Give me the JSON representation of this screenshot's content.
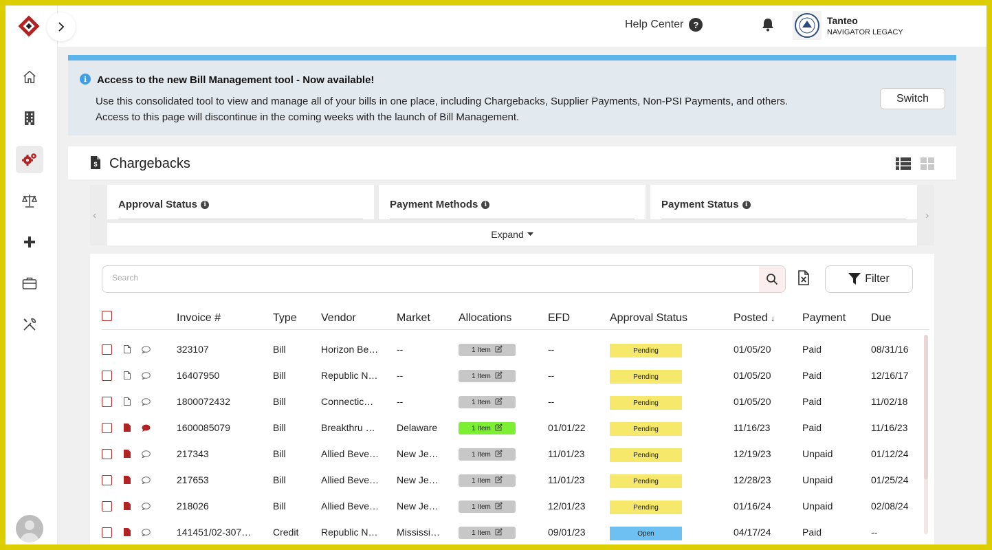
{
  "header": {
    "help_label": "Help Center",
    "org_name": "Tanteo",
    "org_subtitle": "NAVIGATOR LEGACY"
  },
  "sidebar": {
    "items": [
      "home-icon",
      "building-icon",
      "gears-icon",
      "scales-icon",
      "plus-icon",
      "briefcase-icon",
      "tools-icon"
    ],
    "active": "gears-icon"
  },
  "banner": {
    "title": "Access to the new Bill Management tool - Now available!",
    "line1": "Use this consolidated tool to view and manage all of your bills in one place, including Chargebacks, Supplier Payments, Non-PSI Payments, and others.",
    "line2": "Access to this page will discontinue in the coming weeks with the launch of Bill Management.",
    "switch_label": "Switch"
  },
  "page": {
    "title": "Chargebacks"
  },
  "filters": {
    "columns": [
      "Approval Status",
      "Payment Methods",
      "Payment Status"
    ],
    "expand_label": "Expand"
  },
  "toolbar": {
    "search_placeholder": "Search",
    "filter_label": "Filter"
  },
  "table": {
    "columns": [
      "Invoice #",
      "Type",
      "Vendor",
      "Market",
      "Allocations",
      "EFD",
      "Approval Status",
      "Posted",
      "Payment",
      "Due"
    ],
    "sort_indicator": "↓",
    "rows": [
      {
        "invoice": "323107",
        "type": "Bill",
        "vendor": "Horizon Be…",
        "market": "--",
        "alloc": "1 Item",
        "efd": "--",
        "status": "Pending",
        "posted": "01/05/20",
        "payment": "Paid",
        "due": "08/31/16"
      },
      {
        "invoice": "16407950",
        "type": "Bill",
        "vendor": "Republic N…",
        "market": "--",
        "alloc": "1 Item",
        "efd": "--",
        "status": "Pending",
        "posted": "01/05/20",
        "payment": "Paid",
        "due": "12/16/17"
      },
      {
        "invoice": "1800072432",
        "type": "Bill",
        "vendor": "Connectic…",
        "market": "--",
        "alloc": "1 Item",
        "efd": "--",
        "status": "Pending",
        "posted": "01/05/20",
        "payment": "Paid",
        "due": "11/02/18"
      },
      {
        "invoice": "1600085079",
        "type": "Bill",
        "vendor": "Breakthru …",
        "market": "Delaware",
        "alloc": "1 Item",
        "efd": "01/01/22",
        "status": "Pending",
        "posted": "11/16/23",
        "payment": "Paid",
        "due": "11/16/23"
      },
      {
        "invoice": "217343",
        "type": "Bill",
        "vendor": "Allied Beve…",
        "market": "New Je…",
        "alloc": "1 Item",
        "efd": "11/01/23",
        "status": "Pending",
        "posted": "12/19/23",
        "payment": "Unpaid",
        "due": "01/12/24"
      },
      {
        "invoice": "217653",
        "type": "Bill",
        "vendor": "Allied Beve…",
        "market": "New Je…",
        "alloc": "1 Item",
        "efd": "11/01/23",
        "status": "Pending",
        "posted": "12/28/23",
        "payment": "Unpaid",
        "due": "01/25/24"
      },
      {
        "invoice": "218026",
        "type": "Bill",
        "vendor": "Allied Beve…",
        "market": "New Je…",
        "alloc": "1 Item",
        "efd": "12/01/23",
        "status": "Pending",
        "posted": "01/16/24",
        "payment": "Unpaid",
        "due": "02/08/24"
      },
      {
        "invoice": "141451/02-307…",
        "type": "Credit",
        "vendor": "Republic N…",
        "market": "Mississi…",
        "alloc": "1 Item",
        "efd": "09/01/23",
        "status": "Open",
        "posted": "04/17/24",
        "payment": "Paid",
        "due": "--"
      }
    ]
  },
  "colors": {
    "brand_red": "#b22424",
    "banner_bg": "#e2e9ef",
    "banner_accent": "#5bb4ea",
    "pending": "#f5e86b",
    "open": "#6dc0f1",
    "alloc_default": "#c7c7c7",
    "alloc_green": "#7cee33"
  }
}
